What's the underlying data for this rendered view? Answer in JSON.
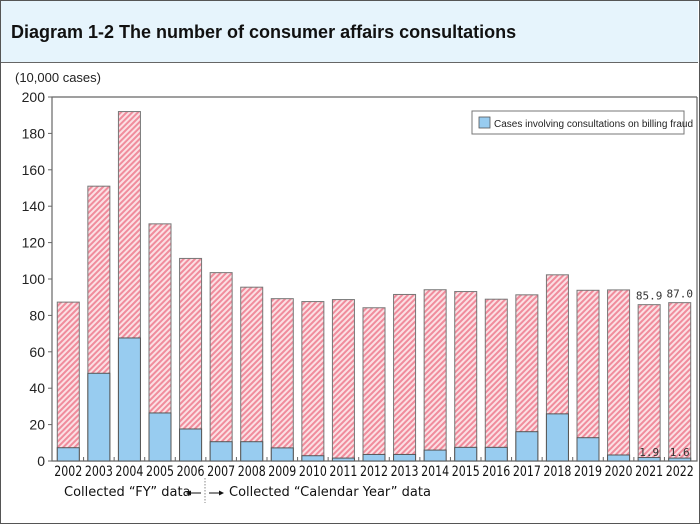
{
  "chart_data": {
    "type": "bar",
    "stacked": "overlay",
    "title": "Diagram 1-2 The number of consumer affairs consultations",
    "ylabel": "(10,000 cases)",
    "ylim": [
      0,
      200
    ],
    "yticks": [
      0,
      20,
      40,
      60,
      80,
      100,
      120,
      140,
      160,
      180,
      200
    ],
    "grid": false,
    "legend_position": "top-right",
    "categories": [
      "2002",
      "2003",
      "2004",
      "2005",
      "2006",
      "2007",
      "2008",
      "2009",
      "2010",
      "2011",
      "2012",
      "2013",
      "2014",
      "2015",
      "2016",
      "2017",
      "2018",
      "2019",
      "2020",
      "2021",
      "2022"
    ],
    "series": [
      {
        "key": "total",
        "values": [
          87.3,
          151.0,
          192.0,
          130.3,
          111.3,
          103.5,
          95.5,
          89.2,
          87.6,
          88.7,
          84.2,
          91.5,
          94.1,
          93.1,
          88.9,
          91.3,
          102.3,
          93.8,
          94.0,
          85.9,
          87.0
        ],
        "color": "#f08c9c",
        "pattern": "diagonal-hatch"
      },
      {
        "key": "billing_fraud",
        "name": "Cases involving consultations on billing fraud",
        "values": [
          7.3,
          48.2,
          67.6,
          26.4,
          17.6,
          10.6,
          10.6,
          7.2,
          2.9,
          1.6,
          3.6,
          3.6,
          6.0,
          7.5,
          7.5,
          16.1,
          25.9,
          12.8,
          3.3,
          1.9,
          1.6
        ],
        "color": "#98ccf0"
      }
    ],
    "data_labels": [
      {
        "category": "2021",
        "total": "85.9",
        "billing_fraud": "1.9"
      },
      {
        "category": "2022",
        "total": "87.0",
        "billing_fraud": "1.6"
      }
    ],
    "annotations": {
      "fy_note": "Collected “FY” data",
      "cy_note": "Collected “Calendar Year” data"
    }
  }
}
